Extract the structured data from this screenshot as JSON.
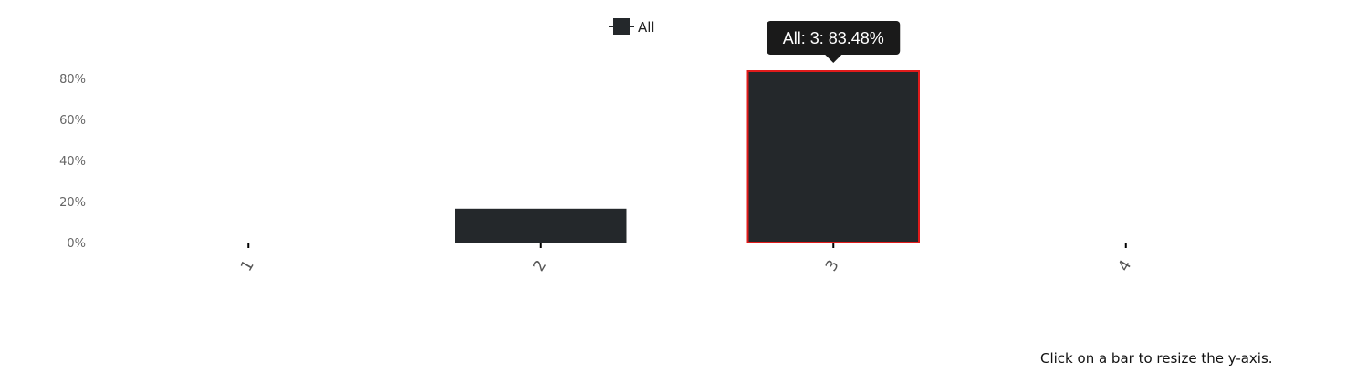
{
  "chart_data": {
    "type": "bar",
    "categories": [
      "1",
      "2",
      "3",
      "4"
    ],
    "series": [
      {
        "name": "All",
        "values": [
          0,
          16.52,
          83.48,
          0
        ],
        "color": "#24282b"
      }
    ],
    "ylim": [
      0,
      83.48
    ],
    "yticks": [
      0,
      20,
      40,
      60,
      80
    ],
    "ytick_labels": [
      "0%",
      "20%",
      "40%",
      "60%",
      "80%"
    ],
    "legend": {
      "label": "All",
      "placement": "top-center"
    },
    "tooltip": {
      "text": "All: 3: 83.48%",
      "category": "3"
    },
    "highlighted_category": "3",
    "highlight_color": "#e01b1b",
    "grid": false
  },
  "hint": "Click on a bar to resize the y-axis."
}
